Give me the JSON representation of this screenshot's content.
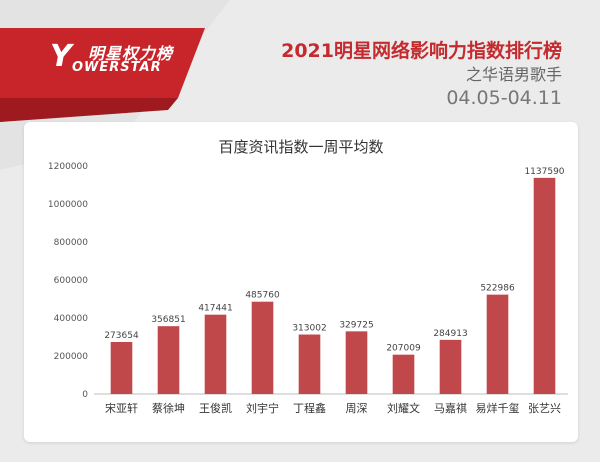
{
  "brand": {
    "logo_cn": "明星权力榜",
    "logo_en": "OWERSTAR",
    "logo_letter": "Y"
  },
  "header": {
    "title": "2021明星网络影响力指数排行榜",
    "subtitle": "之华语男歌手",
    "date_range": "04.05-04.11"
  },
  "colors": {
    "accent": "#c42a2e",
    "bar": "#c0474a",
    "background": "#ebebeb"
  },
  "chart_data": {
    "type": "bar",
    "title": "百度资讯指数一周平均数",
    "categories": [
      "宋亚轩",
      "蔡徐坤",
      "王俊凯",
      "刘宇宁",
      "丁程鑫",
      "周深",
      "刘耀文",
      "马嘉祺",
      "易烊千玺",
      "张艺兴"
    ],
    "values": [
      273654,
      356851,
      417441,
      485760,
      313002,
      329725,
      207009,
      284913,
      522986,
      1137590
    ],
    "ylim": [
      0,
      1200000
    ],
    "yticks": [
      0,
      200000,
      400000,
      600000,
      800000,
      1000000,
      1200000
    ],
    "grid": false,
    "legend": false
  }
}
